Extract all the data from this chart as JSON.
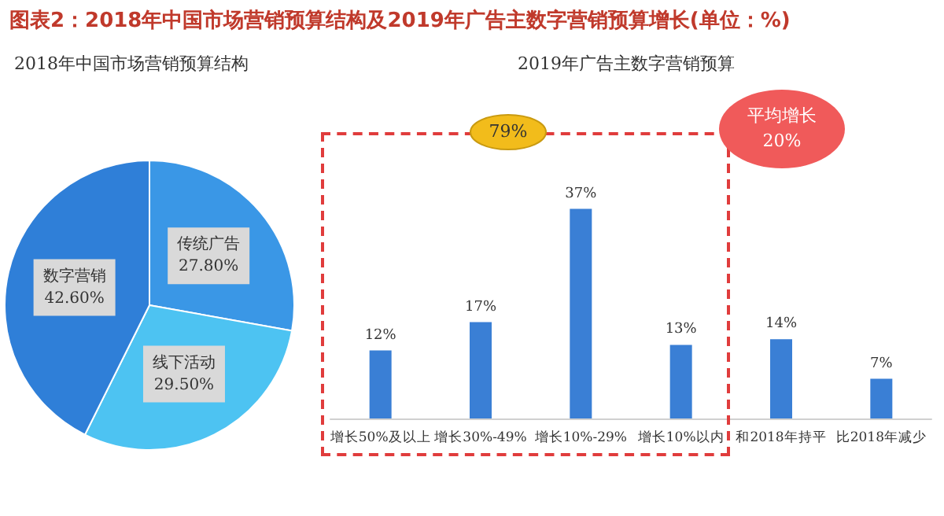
{
  "chart_data": [
    {
      "type": "pie",
      "title": "图表2：2018年中国市场营销预算结构及2019年广告主数字营销预算增长(单位：%)",
      "subtitle": "2018年中国市场营销预算结构",
      "categories": [
        "传统广告",
        "线下活动",
        "数字营销"
      ],
      "values": [
        27.8,
        29.5,
        42.6
      ],
      "colors": [
        "#3a97e6",
        "#4dc3f2",
        "#2f7fd8"
      ],
      "value_labels": [
        "27.80%",
        "29.50%",
        "42.60%"
      ]
    },
    {
      "type": "bar",
      "title": "2019年广告主数字营销预算",
      "categories": [
        "增长50%及以上",
        "增长30%-49%",
        "增长10%-29%",
        "增长10%以内",
        "和2018年持平",
        "比2018年减少"
      ],
      "values": [
        12,
        17,
        37,
        13,
        14,
        7
      ],
      "color": "#3a7fd5",
      "value_labels": [
        "12%",
        "17%",
        "37%",
        "13%",
        "14%",
        "7%"
      ],
      "annotations": [
        "79%",
        "平均增长\n20%"
      ]
    }
  ]
}
